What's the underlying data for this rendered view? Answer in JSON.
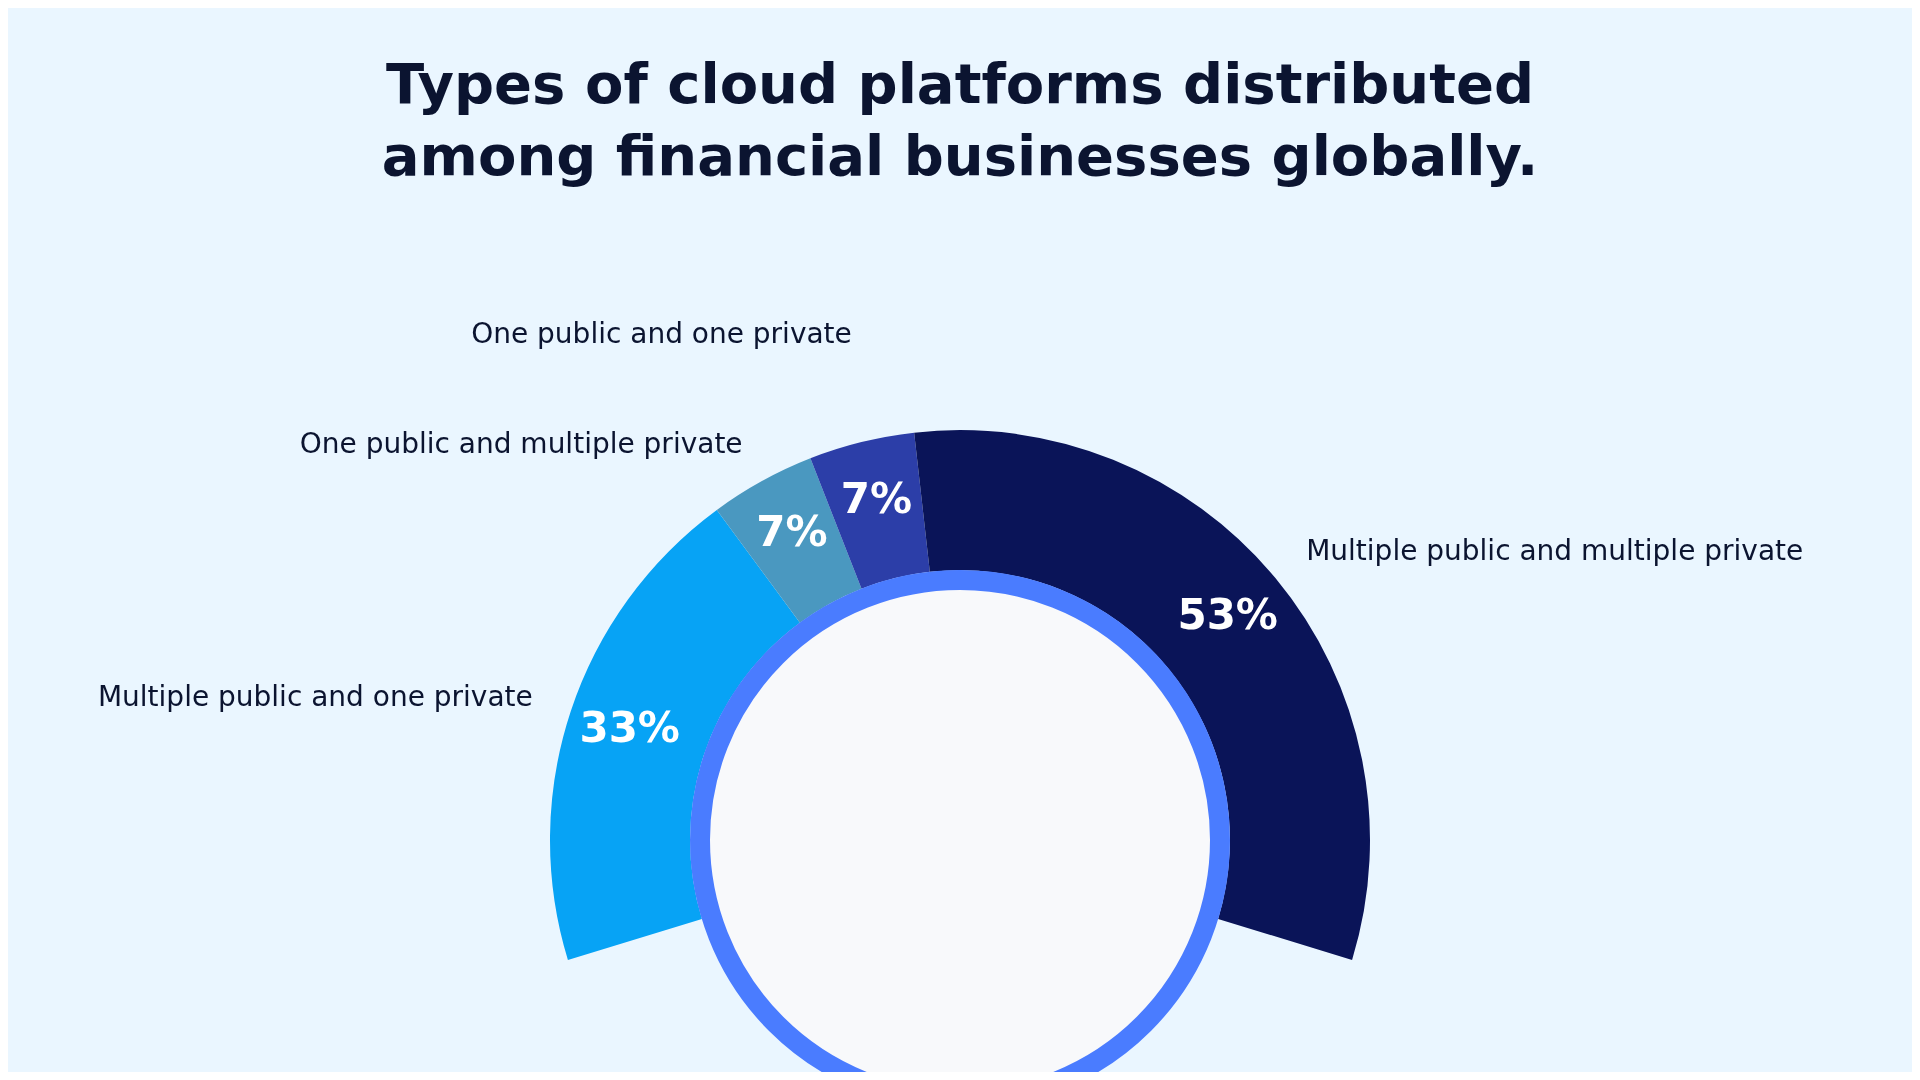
{
  "chart_data": {
    "type": "donut",
    "title": "Types of cloud platforms distributed among financial businesses globally.",
    "categories": [
      "Multiple public and one private",
      "One public and multiple private",
      "One public and one private",
      "Multiple public and multiple private"
    ],
    "values": [
      33,
      7,
      7,
      53
    ],
    "value_labels": [
      "33%",
      "7%",
      "7%",
      "53%"
    ],
    "colors": [
      "#07a3f5",
      "#4a98c0",
      "#2c3ea8",
      "#0a1458"
    ],
    "legend": false
  }
}
